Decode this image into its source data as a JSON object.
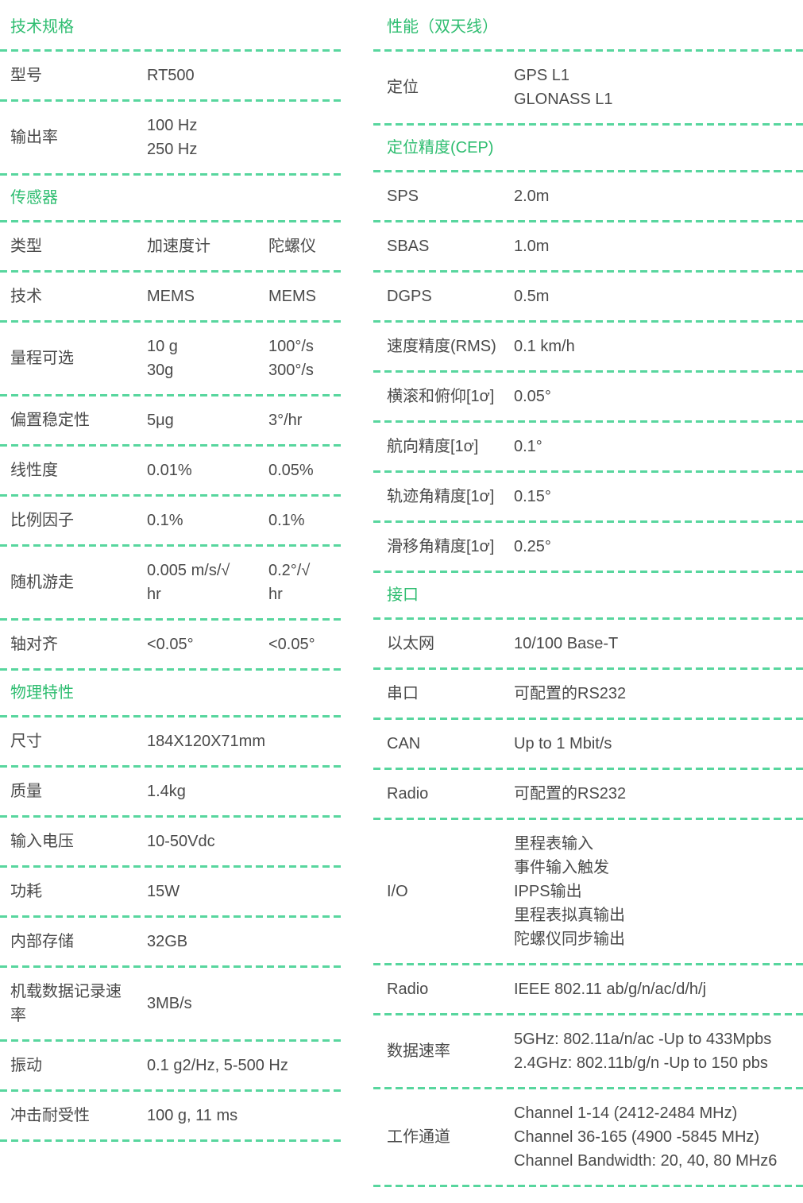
{
  "colors": {
    "section_title_green": "#2ebd70",
    "divider_green": "#58d69e",
    "text_gray": "#4a4a4a"
  },
  "columns": [
    {
      "id": "left",
      "sections": [
        {
          "title": "技术规格",
          "rows": [
            {
              "label": "型号",
              "values": [
                [
                  "RT500"
                ]
              ]
            },
            {
              "label": "输出率",
              "values": [
                [
                  "100 Hz",
                  "250 Hz"
                ]
              ]
            }
          ]
        },
        {
          "title": "传感器",
          "rows": [
            {
              "label": "类型",
              "values": [
                [
                  "加速度计"
                ],
                [
                  "陀螺仪"
                ]
              ]
            },
            {
              "label": "技术",
              "values": [
                [
                  "MEMS"
                ],
                [
                  "MEMS"
                ]
              ]
            },
            {
              "label": "量程可选",
              "values": [
                [
                  "10 g",
                  "30g"
                ],
                [
                  "100°/s",
                  "300°/s"
                ]
              ]
            },
            {
              "label": "偏置稳定性",
              "values": [
                [
                  "5μg"
                ],
                [
                  "3°/hr"
                ]
              ]
            },
            {
              "label": "线性度",
              "values": [
                [
                  "0.01%"
                ],
                [
                  "0.05%"
                ]
              ]
            },
            {
              "label": "比例因子",
              "values": [
                [
                  "0.1%"
                ],
                [
                  "0.1%"
                ]
              ]
            },
            {
              "label": "随机游走",
              "values": [
                [
                  "0.005 m/s/√",
                  "hr"
                ],
                [
                  "0.2°/√",
                  "hr"
                ]
              ]
            },
            {
              "label": "轴对齐",
              "values": [
                [
                  "<0.05°"
                ],
                [
                  "<0.05°"
                ]
              ]
            }
          ]
        },
        {
          "title": "物理特性",
          "rows": [
            {
              "label": "尺寸",
              "values": [
                [
                  "184X120X71mm"
                ]
              ]
            },
            {
              "label": "质量",
              "values": [
                [
                  "1.4kg"
                ]
              ]
            },
            {
              "label": "输入电压",
              "values": [
                [
                  "10-50Vdc"
                ]
              ]
            },
            {
              "label": "功耗",
              "values": [
                [
                  "15W"
                ]
              ]
            },
            {
              "label": "内部存储",
              "values": [
                [
                  "32GB"
                ]
              ]
            },
            {
              "label": "机载数据记录速率",
              "values": [
                [
                  "3MB/s"
                ]
              ]
            },
            {
              "label": "振动",
              "values": [
                [
                  "0.1 g2/Hz, 5-500 Hz"
                ]
              ]
            },
            {
              "label": "冲击耐受性",
              "values": [
                [
                  "100 g, 11 ms"
                ]
              ]
            }
          ]
        }
      ]
    },
    {
      "id": "right",
      "sections": [
        {
          "title": "性能（双天线）",
          "rows": [
            {
              "label": "定位",
              "values": [
                [
                  "GPS L1",
                  "GLONASS L1"
                ]
              ]
            }
          ]
        },
        {
          "title": "定位精度(CEP)",
          "rows": [
            {
              "label": "SPS",
              "values": [
                [
                  "2.0m"
                ]
              ]
            },
            {
              "label": "SBAS",
              "values": [
                [
                  "1.0m"
                ]
              ]
            },
            {
              "label": "DGPS",
              "values": [
                [
                  "0.5m"
                ]
              ]
            },
            {
              "label": "速度精度(RMS)",
              "values": [
                [
                  "0.1 km/h"
                ]
              ]
            },
            {
              "label": "横滚和俯仰[1ơ]",
              "values": [
                [
                  "0.05°"
                ]
              ]
            },
            {
              "label": "航向精度[1ơ]",
              "values": [
                [
                  "0.1°"
                ]
              ]
            },
            {
              "label": "轨迹角精度[1ơ]",
              "values": [
                [
                  "0.15°"
                ]
              ]
            },
            {
              "label": "滑移角精度[1ơ]",
              "values": [
                [
                  "0.25°"
                ]
              ]
            }
          ]
        },
        {
          "title": "接口",
          "rows": [
            {
              "label": "以太网",
              "values": [
                [
                  "10/100 Base-T"
                ]
              ]
            },
            {
              "label": "串口",
              "values": [
                [
                  "可配置的RS232"
                ]
              ]
            },
            {
              "label": "CAN",
              "values": [
                [
                  "Up to 1 Mbit/s"
                ]
              ]
            },
            {
              "label": "Radio",
              "values": [
                [
                  "可配置的RS232"
                ]
              ]
            },
            {
              "label": "I/O",
              "values": [
                [
                  "里程表输入",
                  "事件输入触发",
                  "IPPS输出",
                  "里程表拟真输出",
                  "陀螺仪同步输出"
                ]
              ]
            },
            {
              "label": "Radio",
              "values": [
                [
                  "IEEE 802.11 ab/g/n/ac/d/h/j"
                ]
              ]
            },
            {
              "label": "数据速率",
              "values": [
                [
                  "5GHz: 802.11a/n/ac -Up to 433Mpbs",
                  "2.4GHz: 802.11b/g/n -Up to 150 pbs"
                ]
              ]
            },
            {
              "label": "工作通道",
              "values": [
                [
                  "Channel 1-14 (2412-2484 MHz)",
                  "Channel 36-165 (4900 -5845 MHz)",
                  "Channel Bandwidth: 20, 40, 80 MHz6"
                ]
              ]
            }
          ]
        }
      ]
    }
  ]
}
